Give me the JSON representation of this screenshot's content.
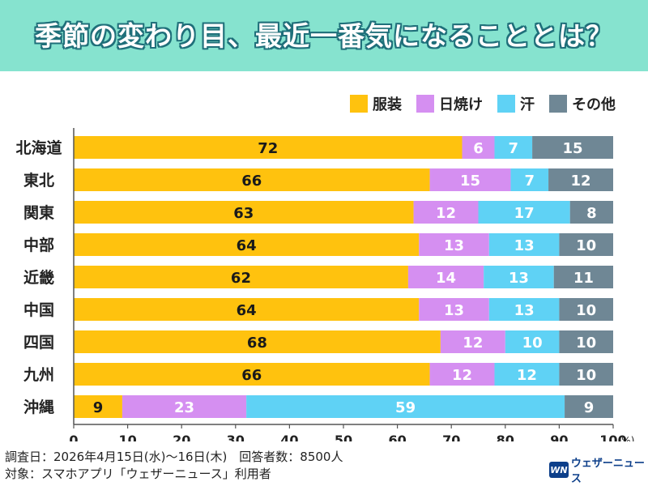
{
  "header": {
    "title": "季節の変わり目、最近一番気になることとは？"
  },
  "legend": [
    {
      "name": "服装",
      "color": "#ffc20e"
    },
    {
      "name": "日焼け",
      "color": "#d58ff1"
    },
    {
      "name": "汗",
      "color": "#5fd2f5"
    },
    {
      "name": "その他",
      "color": "#6f8795"
    }
  ],
  "chart_data": {
    "type": "bar",
    "orientation": "horizontal",
    "stacked": true,
    "categories": [
      "北海道",
      "東北",
      "関東",
      "中部",
      "近畿",
      "中国",
      "四国",
      "九州",
      "沖縄"
    ],
    "series": [
      {
        "name": "服装",
        "color": "#ffc20e",
        "values": [
          72,
          66,
          63,
          64,
          62,
          64,
          68,
          66,
          9
        ]
      },
      {
        "name": "日焼け",
        "color": "#d58ff1",
        "values": [
          6,
          15,
          12,
          13,
          14,
          13,
          12,
          12,
          23
        ]
      },
      {
        "name": "汗",
        "color": "#5fd2f5",
        "values": [
          7,
          7,
          17,
          13,
          13,
          13,
          10,
          12,
          59
        ]
      },
      {
        "name": "その他",
        "color": "#6f8795",
        "values": [
          15,
          12,
          8,
          10,
          11,
          10,
          10,
          10,
          9
        ]
      }
    ],
    "xlim": [
      0,
      100
    ],
    "x_ticks": [
      "0",
      "10",
      "20",
      "30",
      "40",
      "50",
      "60",
      "70",
      "80",
      "90",
      "100"
    ],
    "x_unit": "(%)",
    "grid": false,
    "legend_position": "top-right"
  },
  "footer": {
    "line1": "調査日：2026年4月15日(水)～16日(木)　回答者数：8500人",
    "line2": "対象：スマホアプリ「ウェザーニュース」利用者"
  },
  "logo": {
    "mark": "WN",
    "text": "ウェザーニュース"
  }
}
